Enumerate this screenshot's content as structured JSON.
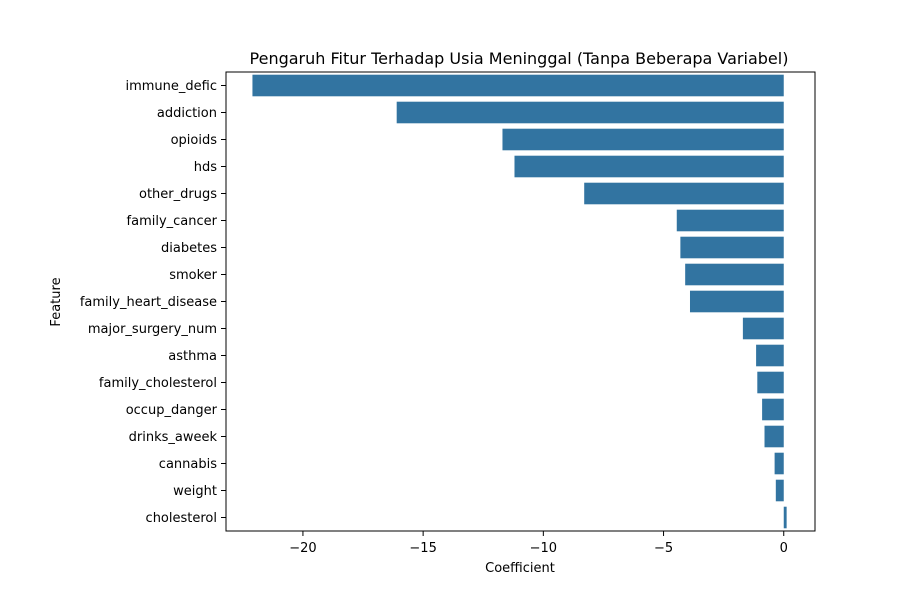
{
  "chart_data": {
    "type": "bar",
    "orientation": "horizontal",
    "title": "Pengaruh Fitur Terhadap Usia Meninggal (Tanpa Beberapa Variabel)",
    "xlabel": "Coefficient",
    "ylabel": "Feature",
    "categories": [
      "immune_defic",
      "addiction",
      "opioids",
      "hds",
      "other_drugs",
      "family_cancer",
      "diabetes",
      "smoker",
      "family_heart_disease",
      "major_surgery_num",
      "asthma",
      "family_cholesterol",
      "occup_danger",
      "drinks_aweek",
      "cannabis",
      "weight",
      "cholesterol"
    ],
    "values": [
      -22.1,
      -16.1,
      -11.7,
      -11.2,
      -8.3,
      -4.45,
      -4.3,
      -4.1,
      -3.9,
      -1.7,
      -1.15,
      -1.1,
      -0.9,
      -0.8,
      -0.38,
      -0.33,
      0.12
    ],
    "xlim": [
      -23.2,
      1.3
    ],
    "xticks": [
      -20,
      -15,
      -10,
      -5,
      0
    ],
    "xtick_labels": [
      "−20",
      "−15",
      "−10",
      "−5",
      "0"
    ],
    "grid": false,
    "bar_color": "#3274a1"
  }
}
